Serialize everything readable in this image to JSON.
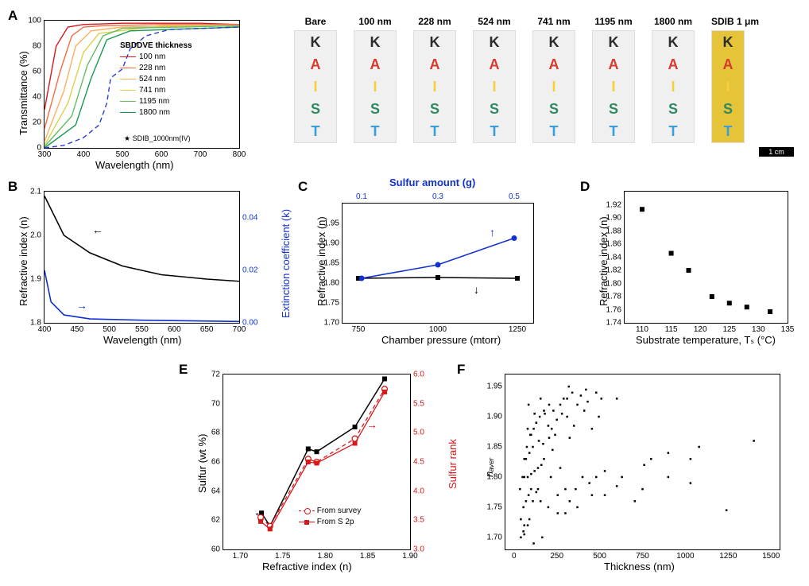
{
  "panelA": {
    "label": "A",
    "type": "line",
    "xlabel": "Wavelength (nm)",
    "ylabel": "Transmittance (%)",
    "xlim": [
      300,
      800
    ],
    "ylim": [
      0,
      100
    ],
    "xticks": [
      300,
      400,
      500,
      600,
      700,
      800
    ],
    "yticks": [
      0,
      20,
      40,
      60,
      80,
      100
    ],
    "legend_title": "SBDDVE thickness",
    "note": "SDIB_1000nm(IV)",
    "series": [
      {
        "name": "100 nm",
        "color": "#d7191c",
        "dash": "",
        "data": [
          [
            300,
            30
          ],
          [
            330,
            80
          ],
          [
            360,
            95
          ],
          [
            400,
            97
          ],
          [
            500,
            98
          ],
          [
            600,
            98
          ],
          [
            700,
            98
          ],
          [
            800,
            97
          ]
        ]
      },
      {
        "name": "228 nm",
        "color": "#f46d43",
        "dash": "",
        "data": [
          [
            300,
            15
          ],
          [
            340,
            60
          ],
          [
            370,
            88
          ],
          [
            400,
            95
          ],
          [
            450,
            96
          ],
          [
            600,
            97
          ],
          [
            800,
            97
          ]
        ]
      },
      {
        "name": "524 nm",
        "color": "#fdae61",
        "dash": "",
        "data": [
          [
            300,
            5
          ],
          [
            350,
            45
          ],
          [
            380,
            80
          ],
          [
            420,
            92
          ],
          [
            500,
            95
          ],
          [
            800,
            96
          ]
        ]
      },
      {
        "name": "741 nm",
        "color": "#d9d24a",
        "dash": "",
        "data": [
          [
            300,
            2
          ],
          [
            360,
            35
          ],
          [
            400,
            75
          ],
          [
            440,
            90
          ],
          [
            600,
            96
          ],
          [
            800,
            96
          ]
        ]
      },
      {
        "name": "1195 nm",
        "color": "#66bd63",
        "dash": "",
        "data": [
          [
            300,
            1
          ],
          [
            370,
            25
          ],
          [
            410,
            65
          ],
          [
            450,
            88
          ],
          [
            500,
            94
          ],
          [
            800,
            96
          ]
        ]
      },
      {
        "name": "1800 nm",
        "color": "#1a9850",
        "dash": "",
        "data": [
          [
            300,
            0
          ],
          [
            380,
            18
          ],
          [
            420,
            55
          ],
          [
            460,
            85
          ],
          [
            520,
            92
          ],
          [
            800,
            95
          ]
        ]
      },
      {
        "name": "SDIB 1000 nm",
        "color": "#2b3bd6",
        "dash": "6 4",
        "data": [
          [
            300,
            0
          ],
          [
            350,
            2
          ],
          [
            400,
            8
          ],
          [
            440,
            18
          ],
          [
            460,
            35
          ],
          [
            470,
            55
          ],
          [
            500,
            62
          ],
          [
            520,
            78
          ],
          [
            560,
            88
          ],
          [
            620,
            93
          ],
          [
            800,
            95
          ]
        ]
      }
    ],
    "photos": {
      "headers": [
        "Bare",
        "100 nm",
        "228 nm",
        "524 nm",
        "741 nm",
        "1195 nm",
        "1800 nm",
        "SDIB 1 μm"
      ],
      "letters": [
        "K",
        "A",
        "I",
        "S",
        "T"
      ],
      "letter_colors": [
        "#2d2d2d",
        "#d63a2f",
        "#f7cf3a",
        "#2f8a64",
        "#3a9fd6"
      ],
      "sdib_bg": "#e6c43a",
      "scale_bar": "1 cm"
    }
  },
  "panelB": {
    "label": "B",
    "type": "line-dual-y",
    "xlabel": "Wavelength (nm)",
    "ylabel_left": "Refractive index (n)",
    "ylabel_right": "Extinction coefficient (k)",
    "xlim": [
      400,
      700
    ],
    "ylim_left": [
      1.8,
      2.1
    ],
    "ylim_right": [
      0.0,
      0.05
    ],
    "xticks": [
      400,
      450,
      500,
      550,
      600,
      650,
      700
    ],
    "yticks_left": [
      1.8,
      1.9,
      2.0,
      2.1
    ],
    "yticks_right": [
      0.0,
      0.02,
      0.04
    ],
    "n_color": "#000000",
    "k_color": "#1030d0",
    "n_data": [
      [
        400,
        2.09
      ],
      [
        430,
        2.0
      ],
      [
        470,
        1.96
      ],
      [
        520,
        1.93
      ],
      [
        580,
        1.91
      ],
      [
        650,
        1.9
      ],
      [
        700,
        1.895
      ]
    ],
    "k_data": [
      [
        400,
        0.02
      ],
      [
        410,
        0.008
      ],
      [
        430,
        0.003
      ],
      [
        470,
        0.0015
      ],
      [
        550,
        0.001
      ],
      [
        700,
        0.0005
      ]
    ]
  },
  "panelC": {
    "label": "C",
    "type": "line-dual-x",
    "xlabel_bottom": "Chamber pressure (mtorr)",
    "xlabel_top": "Sulfur amount (g)",
    "ylabel": "Refractive index (n)",
    "xlim": [
      700,
      1300
    ],
    "xlim_top": [
      0.05,
      0.55
    ],
    "ylim": [
      1.7,
      2.0
    ],
    "xticks_bottom": [
      750,
      1000,
      1250
    ],
    "xticks_top": [
      0.1,
      0.3,
      0.5
    ],
    "yticks": [
      1.7,
      1.75,
      1.8,
      1.85,
      1.9,
      1.95
    ],
    "series_pressure": {
      "color": "#000000",
      "data": [
        [
          750,
          1.812
        ],
        [
          1000,
          1.814
        ],
        [
          1250,
          1.812
        ]
      ]
    },
    "series_sulfur": {
      "color": "#1030d0",
      "data": [
        [
          0.1,
          1.812
        ],
        [
          0.3,
          1.846
        ],
        [
          0.5,
          1.913
        ]
      ]
    }
  },
  "panelD": {
    "label": "D",
    "type": "scatter",
    "xlabel": "Substrate temperature, Tₛ (°C)",
    "ylabel": "Refractive index (n)",
    "xlim": [
      107,
      135
    ],
    "ylim": [
      1.74,
      1.94
    ],
    "xticks": [
      110,
      115,
      120,
      125,
      130,
      135
    ],
    "yticks": [
      1.74,
      1.76,
      1.78,
      1.8,
      1.82,
      1.84,
      1.86,
      1.88,
      1.9,
      1.92
    ],
    "marker_color": "#000000",
    "data": [
      [
        110,
        1.913
      ],
      [
        115,
        1.846
      ],
      [
        118,
        1.82
      ],
      [
        122,
        1.78
      ],
      [
        125,
        1.77
      ],
      [
        128,
        1.764
      ],
      [
        132,
        1.757
      ]
    ]
  },
  "panelE": {
    "label": "E",
    "type": "line-scatter-dual-y",
    "xlabel": "Refractive index (n)",
    "ylabel_left": "Sulfur (wt %)",
    "ylabel_right": "Sulfur rank",
    "xlim": [
      1.68,
      1.9
    ],
    "ylim_left": [
      60,
      72
    ],
    "ylim_right": [
      3.0,
      6.0
    ],
    "xticks": [
      1.7,
      1.75,
      1.8,
      1.85,
      1.9
    ],
    "yticks_left": [
      60,
      62,
      64,
      66,
      68,
      70,
      72
    ],
    "yticks_right": [
      3.0,
      3.5,
      4.0,
      4.5,
      5.0,
      5.5,
      6.0
    ],
    "legend": [
      {
        "label": "From survey",
        "color": "#d7191c",
        "style": "open-circle-dash"
      },
      {
        "label": "From S 2p",
        "color": "#d7191c",
        "style": "solid-square"
      }
    ],
    "wt_color": "#000000",
    "rank_color": "#d7191c",
    "wt_data": [
      [
        1.725,
        62.5
      ],
      [
        1.735,
        61.6
      ],
      [
        1.78,
        66.9
      ],
      [
        1.79,
        66.7
      ],
      [
        1.835,
        68.4
      ],
      [
        1.87,
        71.7
      ]
    ],
    "rank_survey": [
      [
        1.724,
        3.55
      ],
      [
        1.735,
        3.4
      ],
      [
        1.78,
        4.55
      ],
      [
        1.79,
        4.5
      ],
      [
        1.835,
        4.9
      ],
      [
        1.87,
        5.75
      ]
    ],
    "rank_s2p": [
      [
        1.724,
        3.48
      ],
      [
        1.735,
        3.35
      ],
      [
        1.78,
        4.5
      ],
      [
        1.79,
        4.48
      ],
      [
        1.835,
        4.82
      ],
      [
        1.87,
        5.7
      ]
    ]
  },
  "panelF": {
    "label": "F",
    "type": "scatter",
    "xlabel": "Thickness (nm)",
    "ylabel": "nₐᵥₑᵣ",
    "xlim": [
      -50,
      1550
    ],
    "ylim": [
      1.68,
      1.97
    ],
    "xticks": [
      0,
      250,
      500,
      750,
      1000,
      1250,
      1500
    ],
    "yticks": [
      1.7,
      1.75,
      1.8,
      1.85,
      1.9,
      1.95
    ],
    "marker_color": "#000000",
    "marker_size": 2.5,
    "data": [
      [
        40,
        1.7
      ],
      [
        55,
        1.71
      ],
      [
        60,
        1.705
      ],
      [
        40,
        1.73
      ],
      [
        60,
        1.72
      ],
      [
        80,
        1.72
      ],
      [
        90,
        1.73
      ],
      [
        55,
        1.75
      ],
      [
        70,
        1.76
      ],
      [
        85,
        1.77
      ],
      [
        100,
        1.78
      ],
      [
        110,
        1.76
      ],
      [
        130,
        1.775
      ],
      [
        60,
        1.8
      ],
      [
        80,
        1.8
      ],
      [
        100,
        1.805
      ],
      [
        120,
        1.81
      ],
      [
        140,
        1.815
      ],
      [
        160,
        1.82
      ],
      [
        70,
        1.83
      ],
      [
        90,
        1.84
      ],
      [
        110,
        1.85
      ],
      [
        100,
        1.87
      ],
      [
        145,
        1.86
      ],
      [
        170,
        1.855
      ],
      [
        80,
        1.88
      ],
      [
        85,
        1.92
      ],
      [
        130,
        1.89
      ],
      [
        150,
        1.9
      ],
      [
        180,
        1.905
      ],
      [
        200,
        1.885
      ],
      [
        120,
        1.905
      ],
      [
        230,
        1.91
      ],
      [
        250,
        1.895
      ],
      [
        270,
        1.92
      ],
      [
        290,
        1.93
      ],
      [
        310,
        1.9
      ],
      [
        220,
        1.88
      ],
      [
        240,
        1.87
      ],
      [
        340,
        1.94
      ],
      [
        370,
        1.92
      ],
      [
        390,
        1.935
      ],
      [
        410,
        1.91
      ],
      [
        430,
        1.925
      ],
      [
        455,
        1.88
      ],
      [
        420,
        1.945
      ],
      [
        480,
        1.94
      ],
      [
        495,
        1.9
      ],
      [
        510,
        1.93
      ],
      [
        155,
        1.76
      ],
      [
        200,
        1.75
      ],
      [
        255,
        1.77
      ],
      [
        255,
        1.74
      ],
      [
        300,
        1.78
      ],
      [
        300,
        1.74
      ],
      [
        360,
        1.78
      ],
      [
        370,
        1.75
      ],
      [
        400,
        1.8
      ],
      [
        440,
        1.79
      ],
      [
        480,
        1.8
      ],
      [
        530,
        1.81
      ],
      [
        530,
        1.77
      ],
      [
        600,
        1.93
      ],
      [
        630,
        1.8
      ],
      [
        760,
        1.82
      ],
      [
        750,
        1.78
      ],
      [
        800,
        1.83
      ],
      [
        900,
        1.84
      ],
      [
        900,
        1.8
      ],
      [
        1030,
        1.83
      ],
      [
        1080,
        1.85
      ],
      [
        1030,
        1.79
      ],
      [
        1240,
        1.745
      ],
      [
        1400,
        1.86
      ],
      [
        115,
        1.69
      ],
      [
        165,
        1.7
      ],
      [
        215,
        1.8
      ],
      [
        35,
        1.78
      ],
      [
        50,
        1.8
      ],
      [
        60,
        1.83
      ],
      [
        75,
        1.85
      ],
      [
        95,
        1.87
      ],
      [
        115,
        1.88
      ],
      [
        155,
        1.93
      ],
      [
        175,
        1.91
      ],
      [
        205,
        1.92
      ],
      [
        225,
        1.845
      ],
      [
        325,
        1.76
      ],
      [
        350,
        1.885
      ],
      [
        455,
        1.77
      ],
      [
        600,
        1.785
      ],
      [
        705,
        1.76
      ],
      [
        205,
        1.865
      ],
      [
        175,
        1.83
      ],
      [
        325,
        1.865
      ],
      [
        280,
        1.905
      ],
      [
        320,
        1.95
      ],
      [
        270,
        1.815
      ],
      [
        310,
        1.93
      ],
      [
        140,
        1.78
      ]
    ]
  }
}
